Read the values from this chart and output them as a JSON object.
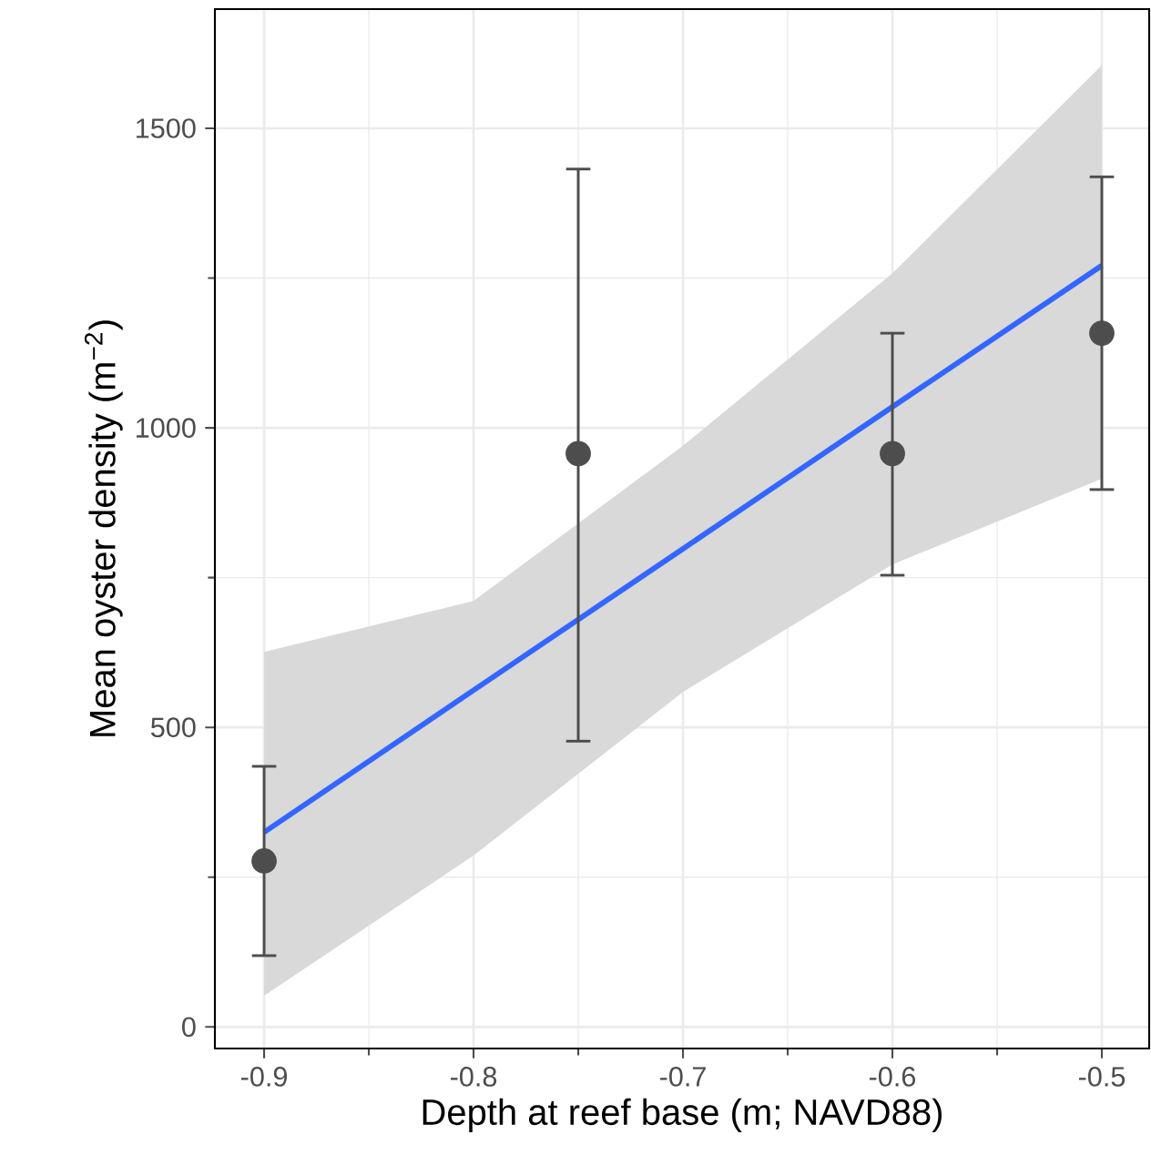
{
  "chart_data": {
    "type": "scatter",
    "xlabel": "Depth at reef base (m; NAVD88)",
    "ylabel": "Mean oyster density (m$^{−2}$)",
    "xlim": [
      -0.9235,
      -0.4774
    ],
    "ylim": [
      -36,
      1699
    ],
    "xticks": [
      -0.9,
      -0.8,
      -0.7,
      -0.6,
      -0.5
    ],
    "yticks": [
      0,
      500,
      1000,
      1500
    ],
    "grid": true,
    "series": [
      {
        "type": "line",
        "marker": "none",
        "color": "#3366ff",
        "x": [
          -0.9,
          -0.8,
          -0.7,
          -0.6,
          -0.5
        ],
        "values": [
          325,
          562,
          798,
          1035,
          1271
        ],
        "lower": [
          52,
          286,
          559,
          772,
          915
        ],
        "upper": [
          626,
          711,
          970,
          1258,
          1605
        ]
      },
      {
        "marker": "circle",
        "color": "#4d4d4d",
        "x": [
          -0.9,
          -0.75,
          -0.6,
          -0.5
        ],
        "values": [
          277,
          957,
          957,
          1158
        ],
        "errors": [
          [
            119,
            435
          ],
          [
            477,
            1432
          ],
          [
            754,
            1158
          ],
          [
            897,
            1419
          ]
        ]
      }
    ]
  }
}
